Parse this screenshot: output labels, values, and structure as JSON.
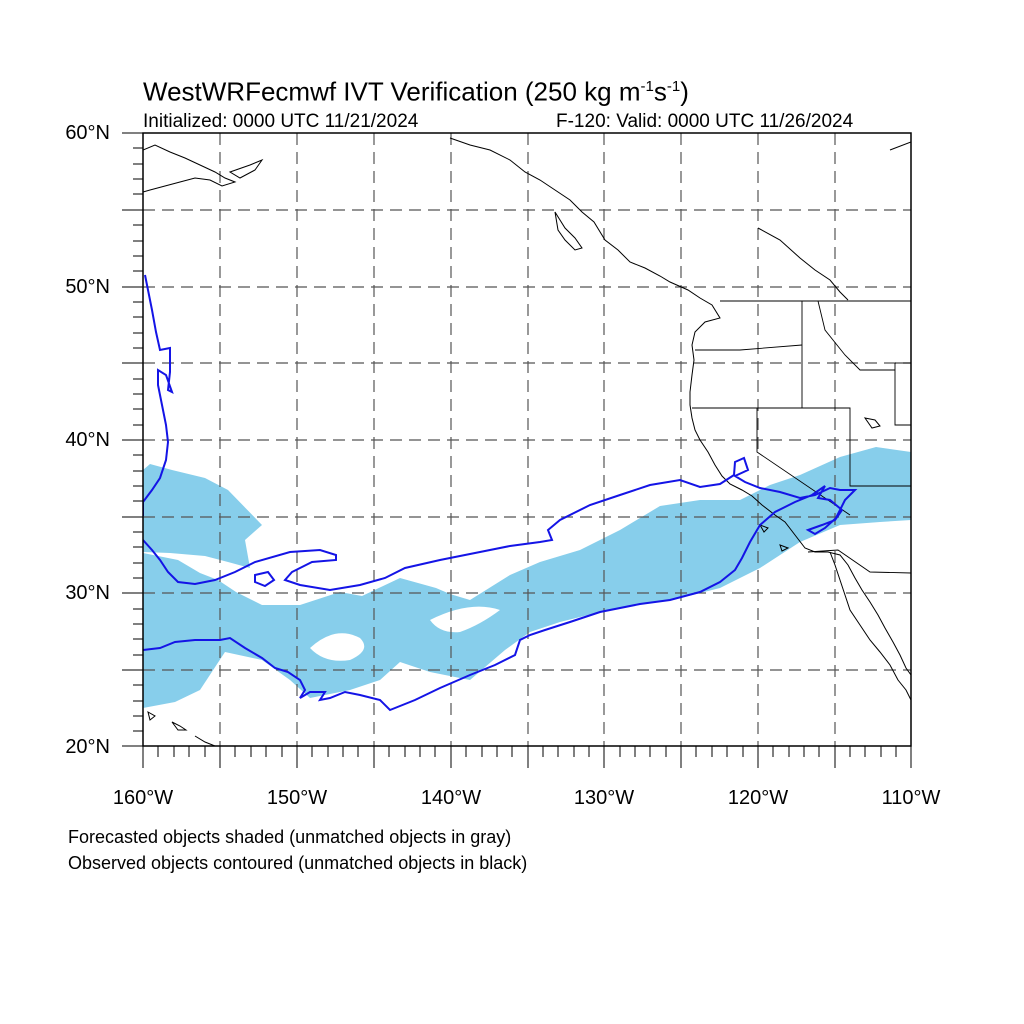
{
  "title": {
    "main": "WestWRFecmwf IVT Verification (250 kg m",
    "exp1": "-1",
    "mid": "s",
    "exp2": "-1",
    "close": ")"
  },
  "subtitle": {
    "initialized": "Initialized: 0000 UTC 11/21/2024",
    "valid": "F-120: Valid: 0000 UTC 11/26/2024"
  },
  "axes": {
    "lat_labels": [
      "60°N",
      "50°N",
      "40°N",
      "30°N",
      "20°N"
    ],
    "lon_labels": [
      "160°W",
      "150°W",
      "140°W",
      "130°W",
      "120°W",
      "110°W"
    ],
    "lat_range": [
      20,
      60
    ],
    "lon_range": [
      -160,
      -110
    ]
  },
  "notes": {
    "line1": "Forecasted objects shaded (unmatched objects in gray)",
    "line2": "Observed objects contoured (unmatched objects in black)"
  },
  "colors": {
    "forecast_fill": "#87ceeb",
    "observed_contour": "#1414e6",
    "coastline": "#000000",
    "grid": "#555555"
  }
}
